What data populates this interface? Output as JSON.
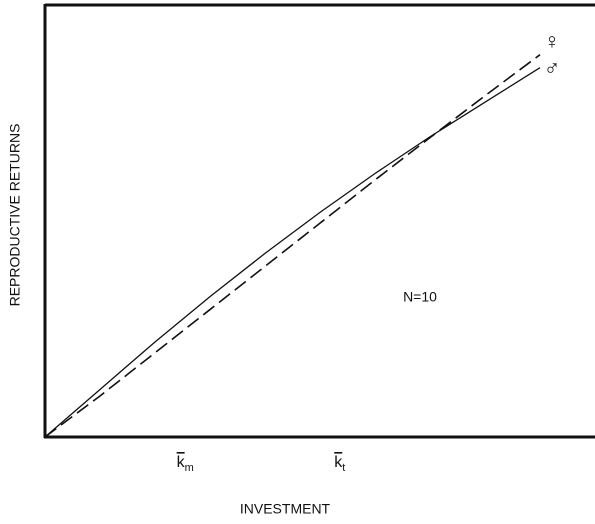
{
  "chart_data": {
    "type": "line",
    "x_label": "INVESTMENT",
    "y_label": "REPRODUCTIVE RETURNS",
    "annotation": "N=10",
    "x": [
      0,
      10,
      20,
      30,
      40,
      50,
      60,
      70,
      80,
      90
    ],
    "series": [
      {
        "name": "♀",
        "color": "#111111",
        "dashed": true,
        "values": [
          0,
          9.5,
          19.5,
          29.5,
          39.5,
          49.5,
          59.5,
          69.3,
          79,
          88.5
        ]
      },
      {
        "name": "♂",
        "color": "#111111",
        "dashed": false,
        "values": [
          0,
          11,
          22,
          32.5,
          42.5,
          52,
          61,
          69.5,
          77.5,
          85.5
        ]
      }
    ],
    "xlim": [
      0,
      100
    ],
    "ylim": [
      0,
      100
    ],
    "xticks": [
      {
        "value": 25.5,
        "label": "k",
        "subscript": "m"
      },
      {
        "value": 53.6,
        "label": "k",
        "subscript": "t"
      }
    ],
    "grid": false
  }
}
